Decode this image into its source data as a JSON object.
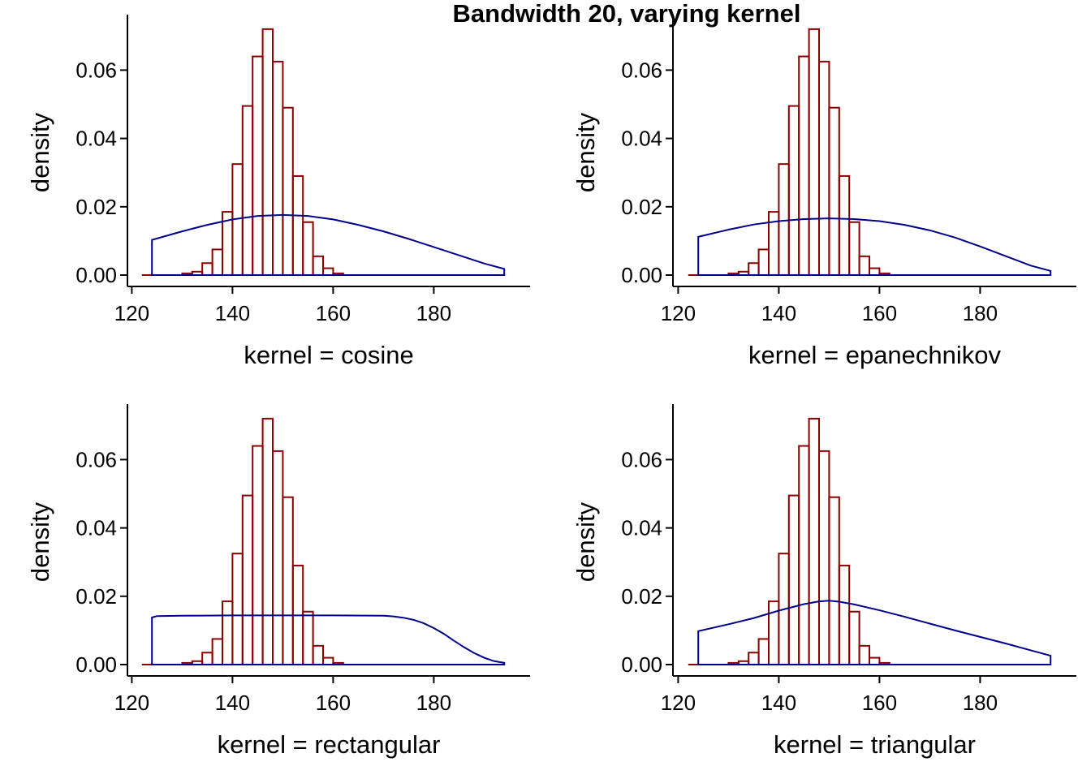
{
  "title": "Bandwidth 20, varying kernel",
  "colors": {
    "histogram": "#8B0000",
    "density": "#00008B",
    "axis": "#000000"
  },
  "chart_data": [
    {
      "type": "area",
      "panel_label": "kernel = cosine",
      "xlabel": "kernel = cosine",
      "ylabel": "density",
      "xlim": [
        120,
        196
      ],
      "ylim": [
        0,
        0.074
      ],
      "x_ticks": [
        120,
        140,
        160,
        180
      ],
      "y_ticks": [
        0.0,
        0.02,
        0.04,
        0.06
      ],
      "grid": false,
      "histogram": {
        "bin_edges": [
          122,
          124,
          126,
          128,
          130,
          132,
          134,
          136,
          138,
          140,
          142,
          144,
          146,
          148,
          150,
          152,
          154,
          156,
          158,
          160,
          162,
          164,
          166,
          168,
          170,
          172,
          174,
          176,
          178,
          180,
          182,
          184,
          186,
          188,
          190,
          192,
          194
        ],
        "densities": [
          0,
          0,
          0,
          0,
          0.0005,
          0.001,
          0.0035,
          0.0075,
          0.0185,
          0.0325,
          0.0495,
          0.064,
          0.072,
          0.0625,
          0.049,
          0.029,
          0.0155,
          0.0055,
          0.002,
          0.0005,
          0,
          0,
          0,
          0,
          0,
          0,
          0,
          0,
          0,
          0,
          0,
          0,
          0,
          0,
          0,
          0
        ]
      },
      "density_curve": {
        "x": [
          124,
          130,
          135,
          140,
          145,
          150,
          155,
          160,
          165,
          170,
          175,
          180,
          185,
          190,
          194
        ],
        "y": [
          0.0103,
          0.0128,
          0.0147,
          0.0163,
          0.0173,
          0.0176,
          0.0173,
          0.0163,
          0.0147,
          0.0128,
          0.0106,
          0.0082,
          0.0058,
          0.0034,
          0.0018
        ]
      }
    },
    {
      "type": "area",
      "panel_label": "kernel = epanechnikov",
      "xlabel": "kernel = epanechnikov",
      "ylabel": "density",
      "xlim": [
        120,
        196
      ],
      "ylim": [
        0,
        0.074
      ],
      "x_ticks": [
        120,
        140,
        160,
        180
      ],
      "y_ticks": [
        0.0,
        0.02,
        0.04,
        0.06
      ],
      "grid": false,
      "histogram": {
        "bin_edges": [
          122,
          124,
          126,
          128,
          130,
          132,
          134,
          136,
          138,
          140,
          142,
          144,
          146,
          148,
          150,
          152,
          154,
          156,
          158,
          160,
          162,
          164,
          166,
          168,
          170,
          172,
          174,
          176,
          178,
          180,
          182,
          184,
          186,
          188,
          190,
          192,
          194
        ],
        "densities": [
          0,
          0,
          0,
          0,
          0.0005,
          0.001,
          0.0035,
          0.0075,
          0.0185,
          0.0325,
          0.0495,
          0.064,
          0.072,
          0.0625,
          0.049,
          0.029,
          0.0155,
          0.0055,
          0.002,
          0.0005,
          0,
          0,
          0,
          0,
          0,
          0,
          0,
          0,
          0,
          0,
          0,
          0,
          0,
          0,
          0,
          0
        ]
      },
      "density_curve": {
        "x": [
          124,
          130,
          135,
          140,
          145,
          150,
          155,
          160,
          165,
          170,
          175,
          180,
          185,
          190,
          194
        ],
        "y": [
          0.0112,
          0.0133,
          0.0148,
          0.0158,
          0.0164,
          0.0166,
          0.0164,
          0.0158,
          0.0147,
          0.0131,
          0.011,
          0.0084,
          0.0056,
          0.0028,
          0.0012
        ]
      }
    },
    {
      "type": "area",
      "panel_label": "kernel = rectangular",
      "xlabel": "kernel = rectangular",
      "ylabel": "density",
      "xlim": [
        120,
        196
      ],
      "ylim": [
        0,
        0.074
      ],
      "x_ticks": [
        120,
        140,
        160,
        180
      ],
      "y_ticks": [
        0.0,
        0.02,
        0.04,
        0.06
      ],
      "grid": false,
      "histogram": {
        "bin_edges": [
          122,
          124,
          126,
          128,
          130,
          132,
          134,
          136,
          138,
          140,
          142,
          144,
          146,
          148,
          150,
          152,
          154,
          156,
          158,
          160,
          162,
          164,
          166,
          168,
          170,
          172,
          174,
          176,
          178,
          180,
          182,
          184,
          186,
          188,
          190,
          192,
          194
        ],
        "densities": [
          0,
          0,
          0,
          0,
          0.0005,
          0.001,
          0.0035,
          0.0075,
          0.0185,
          0.0325,
          0.0495,
          0.064,
          0.072,
          0.0625,
          0.049,
          0.029,
          0.0155,
          0.0055,
          0.002,
          0.0005,
          0,
          0,
          0,
          0,
          0,
          0,
          0,
          0,
          0,
          0,
          0,
          0,
          0,
          0,
          0,
          0
        ]
      },
      "density_curve": {
        "x": [
          124,
          125,
          130,
          140,
          150,
          160,
          170,
          172,
          174,
          176,
          178,
          180,
          182,
          184,
          186,
          188,
          190,
          192,
          194
        ],
        "y": [
          0.0138,
          0.0142,
          0.0143,
          0.0144,
          0.0144,
          0.0144,
          0.0143,
          0.0141,
          0.0137,
          0.0131,
          0.0121,
          0.0107,
          0.009,
          0.007,
          0.0051,
          0.0034,
          0.002,
          0.001,
          0.0005
        ]
      }
    },
    {
      "type": "area",
      "panel_label": "kernel = triangular",
      "xlabel": "kernel = triangular",
      "ylabel": "density",
      "xlim": [
        120,
        196
      ],
      "ylim": [
        0,
        0.074
      ],
      "x_ticks": [
        120,
        140,
        160,
        180
      ],
      "y_ticks": [
        0.0,
        0.02,
        0.04,
        0.06
      ],
      "grid": false,
      "histogram": {
        "bin_edges": [
          122,
          124,
          126,
          128,
          130,
          132,
          134,
          136,
          138,
          140,
          142,
          144,
          146,
          148,
          150,
          152,
          154,
          156,
          158,
          160,
          162,
          164,
          166,
          168,
          170,
          172,
          174,
          176,
          178,
          180,
          182,
          184,
          186,
          188,
          190,
          192,
          194
        ],
        "densities": [
          0,
          0,
          0,
          0,
          0.0005,
          0.001,
          0.0035,
          0.0075,
          0.0185,
          0.0325,
          0.0495,
          0.064,
          0.072,
          0.0625,
          0.049,
          0.029,
          0.0155,
          0.0055,
          0.002,
          0.0005,
          0,
          0,
          0,
          0,
          0,
          0,
          0,
          0,
          0,
          0,
          0,
          0,
          0,
          0,
          0,
          0
        ]
      },
      "density_curve": {
        "x": [
          124,
          130,
          135,
          140,
          145,
          148,
          150,
          152,
          155,
          160,
          165,
          170,
          175,
          180,
          185,
          190,
          194
        ],
        "y": [
          0.0098,
          0.0118,
          0.0136,
          0.0158,
          0.0177,
          0.0185,
          0.0187,
          0.0184,
          0.0176,
          0.0159,
          0.014,
          0.012,
          0.01,
          0.0081,
          0.0062,
          0.0042,
          0.0026
        ]
      }
    }
  ]
}
